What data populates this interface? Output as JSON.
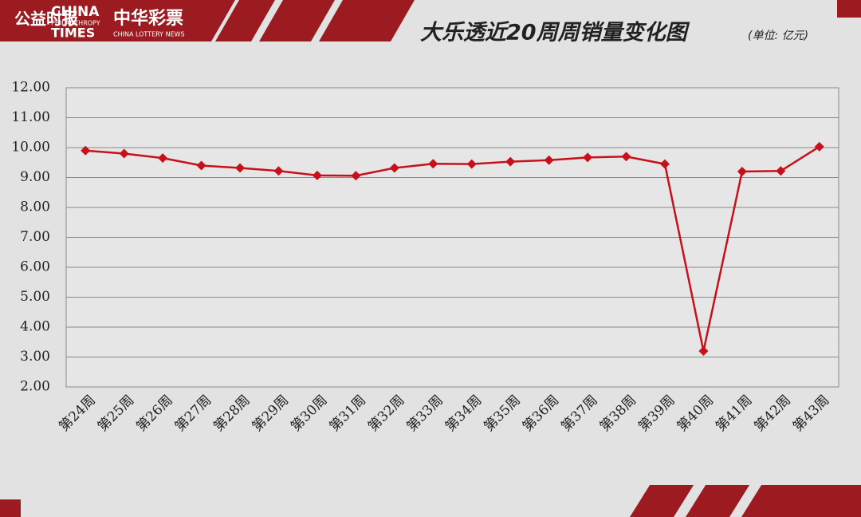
{
  "header": {
    "logo_cn": "公益时报",
    "logo_en_1": "CHINA",
    "logo_en_2": "PHILANTHROPY",
    "logo_en_3": "TIMES",
    "brand": "中华彩票",
    "brand_en": "CHINA LOTTERY NEWS"
  },
  "chart_data": {
    "type": "line",
    "title": "大乐透近20周周销量变化图",
    "unit": "(单位: 亿元)",
    "categories": [
      "第24周",
      "第25周",
      "第26周",
      "第27周",
      "第28周",
      "第29周",
      "第30周",
      "第31周",
      "第32周",
      "第33周",
      "第34周",
      "第35周",
      "第36周",
      "第37周",
      "第38周",
      "第39周",
      "第40周",
      "第41周",
      "第42周",
      "第43周"
    ],
    "values": [
      9.9,
      9.8,
      9.65,
      9.4,
      9.32,
      9.22,
      9.07,
      9.06,
      9.32,
      9.46,
      9.45,
      9.53,
      9.58,
      9.67,
      9.7,
      9.45,
      3.2,
      9.2,
      9.22,
      10.03
    ],
    "color": "#c8101a",
    "ylim": [
      2,
      12
    ],
    "yticks": [
      {
        "value": 2,
        "label": "2.00"
      },
      {
        "value": 3,
        "label": "3.00"
      },
      {
        "value": 4,
        "label": "4.00"
      },
      {
        "value": 5,
        "label": "5.00"
      },
      {
        "value": 6,
        "label": "6.00"
      },
      {
        "value": 7,
        "label": "7.00"
      },
      {
        "value": 8,
        "label": "8.00"
      },
      {
        "value": 9,
        "label": "9.00"
      },
      {
        "value": 10,
        "label": "10.00"
      },
      {
        "value": 11,
        "label": "11.00"
      },
      {
        "value": 12,
        "label": "12.00"
      }
    ],
    "grid": true
  }
}
